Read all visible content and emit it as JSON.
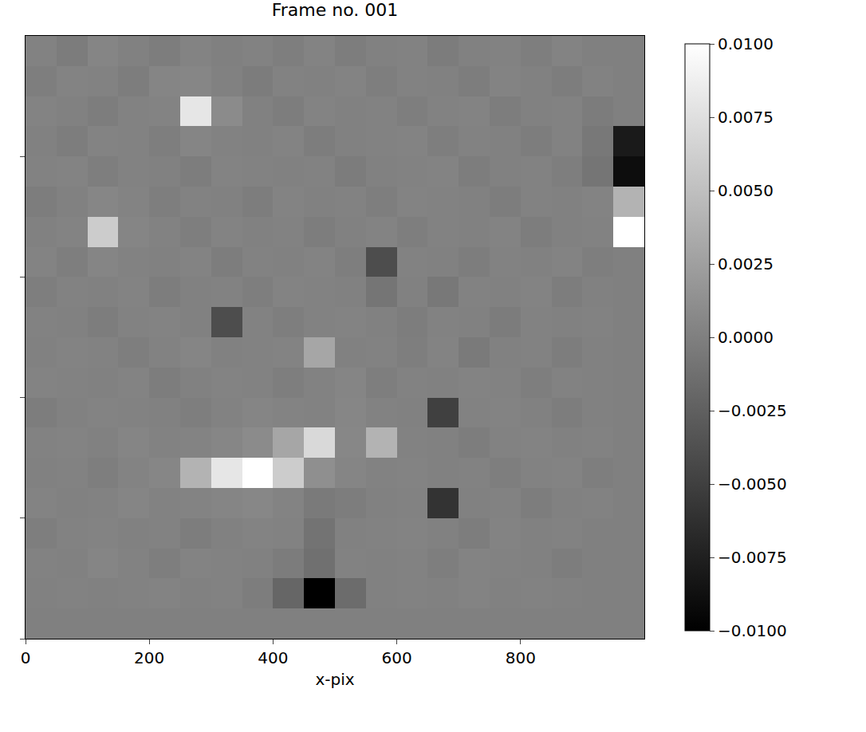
{
  "chart_data": {
    "type": "heatmap",
    "title": "Frame no. 001",
    "x_label": "x-pix",
    "color": "gray",
    "tick_labels": "x",
    "xlim": [
      0,
      1000
    ],
    "ylim": [
      1000,
      0
    ],
    "xticks": [
      0,
      200,
      400,
      600,
      800
    ],
    "yticks": [
      200,
      400,
      600,
      800,
      1000
    ],
    "zlim": [
      -0.01,
      0.01
    ],
    "zticks": [
      {
        "value": 0.01,
        "label": "0.0100"
      },
      {
        "value": 0.0075,
        "label": "0.0075"
      },
      {
        "value": 0.005,
        "label": "0.0050"
      },
      {
        "value": 0.0025,
        "label": "0.0025"
      },
      {
        "value": 0,
        "label": "0.0000"
      },
      {
        "value": -0.0025,
        "label": "−0.0025"
      },
      {
        "value": -0.005,
        "label": "−0.0050"
      },
      {
        "value": -0.0075,
        "label": "−0.0075"
      },
      {
        "value": -0.01,
        "label": "−0.0100"
      }
    ],
    "x": [
      25,
      75,
      125,
      175,
      225,
      275,
      325,
      375,
      425,
      475,
      525,
      575,
      625,
      675,
      725,
      775,
      825,
      875,
      925,
      975
    ],
    "y": [
      25,
      75,
      125,
      175,
      225,
      275,
      325,
      375,
      425,
      475,
      525,
      575,
      625,
      675,
      725,
      775,
      825,
      875,
      925,
      975
    ],
    "cells": [
      [
        0.0002,
        -0.0003,
        0.0004,
        0.0001,
        -0.0002,
        0.0003,
        0,
        0.0002,
        -0.0001,
        0.0003,
        -0.0002,
        0.0001,
        0.0002,
        -0.0003,
        0.0001,
        0.0002,
        -0.0001,
        0.0003,
        0,
        0
      ],
      [
        -0.0001,
        0.0003,
        0.0002,
        -0.0002,
        0.0004,
        0.0005,
        0.0001,
        -0.0003,
        0.0002,
        0.0001,
        0.0003,
        -0.0001,
        0.0002,
        0.0001,
        -0.0002,
        0.0003,
        0.0001,
        -0.0002,
        0.0002,
        0
      ],
      [
        0.0003,
        0.0001,
        -0.0002,
        0.0002,
        0.0003,
        0.008,
        0.0009,
        0.0001,
        -0.0002,
        0.0003,
        0.0001,
        0.0002,
        -0.0001,
        0.0002,
        0.0003,
        -0.0002,
        0.0001,
        0.0002,
        -0.0003,
        0
      ],
      [
        0.0001,
        -0.0002,
        0.0003,
        0.0002,
        -0.0001,
        0.0004,
        0.0002,
        0.0001,
        0.0003,
        -0.0002,
        0.0001,
        0.0002,
        0.0003,
        -0.0001,
        0.0002,
        0.0001,
        -0.0002,
        0.0002,
        -0.0006,
        -0.008
      ],
      [
        0.0002,
        0.0003,
        -0.0001,
        0.0002,
        0.0001,
        -0.0002,
        0.0003,
        0.0002,
        0.0001,
        0.0002,
        -0.0003,
        0.0001,
        0.0002,
        0.0003,
        -0.0002,
        0.0001,
        0.0002,
        -0.0001,
        -0.0008,
        -0.009
      ],
      [
        -0.0002,
        0.0001,
        0.0005,
        0.0003,
        -0.0001,
        0.0002,
        0.0001,
        -0.0002,
        0.0003,
        0.0001,
        0.0002,
        -0.0001,
        0.0003,
        0.0002,
        0.0001,
        -0.0002,
        0.0002,
        0.0001,
        0.0003,
        0.004
      ],
      [
        0.0001,
        0.0003,
        0.006,
        0.0004,
        0.0002,
        -0.0001,
        0.0003,
        0.0001,
        0.0002,
        -0.0002,
        0.0001,
        0.0003,
        -0.0001,
        0.0002,
        0.0001,
        0.0003,
        -0.0002,
        0.0001,
        0.0002,
        0.01
      ],
      [
        0.0003,
        -0.0001,
        0.0004,
        0.0002,
        0.0001,
        0.0003,
        -0.0002,
        0.0002,
        0.0001,
        0.0003,
        -0.0001,
        -0.004,
        0.0002,
        0.0001,
        -0.0002,
        0.0002,
        0.0001,
        0.0003,
        -0.0001,
        0
      ],
      [
        -0.0001,
        0.0002,
        0.0001,
        0.0003,
        -0.0002,
        0.0001,
        0.0002,
        -0.0001,
        0.0003,
        0.0002,
        0.0001,
        -0.0008,
        0.0001,
        -0.0006,
        0.0002,
        0.0001,
        0.0003,
        -0.0002,
        0.0001,
        0
      ],
      [
        0.0002,
        0.0001,
        -0.0002,
        0.0002,
        0.0003,
        0.0001,
        -0.004,
        0.0002,
        -0.0001,
        0.0002,
        0.0003,
        0.0001,
        -0.0002,
        0.0002,
        0.0001,
        -0.0003,
        0.0002,
        0.0001,
        0.0002,
        0
      ],
      [
        0.0001,
        0.0003,
        0.0002,
        -0.0001,
        0.0002,
        0.0004,
        0.0001,
        0.0002,
        0.0003,
        0.003,
        0.0001,
        0.0002,
        -0.0001,
        0.0003,
        -0.0004,
        0.0001,
        0.0002,
        -0.0002,
        0.0001,
        0
      ],
      [
        0.0003,
        0.0002,
        0.0001,
        0.0003,
        -0.0002,
        0.0001,
        0.0003,
        0.0002,
        -0.0001,
        0.0002,
        0.0004,
        -0.0001,
        0.0002,
        0.0001,
        0.0003,
        0.0002,
        -0.0001,
        0.0002,
        0.0001,
        0
      ],
      [
        -0.0002,
        0.0001,
        0.0003,
        0.0002,
        0.0001,
        -0.0001,
        0.0002,
        0.0004,
        0.0003,
        0.0002,
        0.0005,
        0.0002,
        0.0001,
        -0.005,
        0.0002,
        0.0003,
        0.0001,
        -0.0002,
        0.0001,
        0
      ],
      [
        0.0002,
        0.0003,
        0.0001,
        0.0004,
        0.0002,
        0.0003,
        0.0005,
        0.0009,
        0.003,
        0.007,
        0.0006,
        0.004,
        0.0002,
        0.0001,
        -0.0002,
        0.0002,
        0.0003,
        0.0001,
        0.0002,
        0
      ],
      [
        0.0001,
        0.0002,
        -0.0001,
        0.0003,
        0.0005,
        0.004,
        0.008,
        0.01,
        0.006,
        0.0012,
        0.0004,
        0.0002,
        0.0003,
        0.0001,
        0.0002,
        -0.0001,
        0.0002,
        0.0003,
        -0.0001,
        0
      ],
      [
        0.0003,
        0.0001,
        0.0002,
        0.0004,
        0.0002,
        0.0003,
        0.0004,
        0.0006,
        0.0003,
        -0.0004,
        -0.0002,
        0.0001,
        0.0002,
        -0.006,
        0.0001,
        0.0002,
        -0.0002,
        0.0001,
        0.0002,
        0
      ],
      [
        -0.0001,
        0.0002,
        0.0003,
        0.0001,
        0.0002,
        -0.0002,
        0.0001,
        0.0003,
        0.0002,
        -0.001,
        0.0001,
        0.0002,
        0.0003,
        0.0001,
        -0.0002,
        0.0003,
        0.0001,
        0.0002,
        0,
        0
      ],
      [
        0.0002,
        0.0001,
        0.0004,
        0.0002,
        -0.0001,
        0.0003,
        0.0002,
        0.0001,
        -0.0003,
        -0.0012,
        0.0002,
        0.0001,
        0.0002,
        -0.0001,
        0.0003,
        0.0002,
        0.0001,
        -0.0002,
        0,
        0
      ],
      [
        0.0001,
        0.0002,
        0.0001,
        0.0002,
        0.0003,
        0.0001,
        0.0002,
        -0.0002,
        -0.002,
        -0.01,
        -0.0015,
        0.0001,
        0.0002,
        0.0001,
        0.0003,
        0.0001,
        0.0002,
        0.0001,
        0,
        0
      ],
      [
        0,
        0,
        0,
        0,
        0,
        0,
        0,
        0,
        0,
        0,
        0,
        0,
        0,
        0,
        0,
        0,
        0,
        0,
        0,
        0
      ]
    ]
  }
}
